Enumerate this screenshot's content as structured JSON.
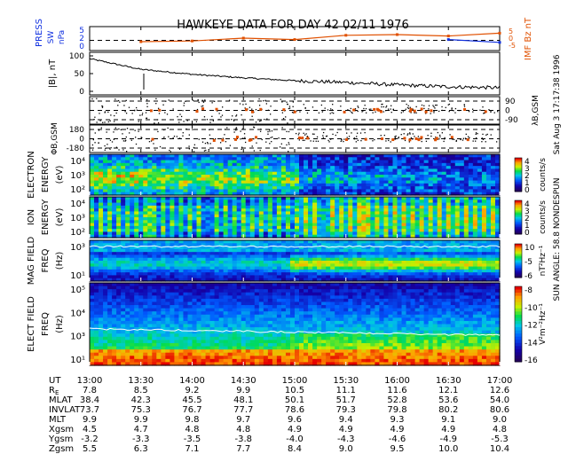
{
  "title": "HAWKEYE DATA FOR DAY  42 02/11 1976",
  "side_annotations": {
    "right_top": "Sat Aug  3 17:17:38 1996",
    "right_mid": "SUN ANGLE: 58.8 NONDESPUN"
  },
  "colors": {
    "press_blue": "#1030e0",
    "imf_orange": "#e05000",
    "line_black": "#000000"
  },
  "chart_data": [
    {
      "type": "line",
      "panel": "pressure-imf",
      "ylabel_left": [
        "PRESS",
        "SW",
        "nPa"
      ],
      "ylabel_right": "IMF Bz nT",
      "left_ticks": [
        "5",
        "2",
        "0"
      ],
      "right_ticks": [
        "5",
        "0",
        "-5"
      ],
      "x": [
        "13:00",
        "13:30",
        "14:00",
        "14:30",
        "15:00",
        "15:30",
        "16:00",
        "16:30",
        "17:00"
      ],
      "series": [
        {
          "color": "#1030e0",
          "values": [
            null,
            null,
            null,
            null,
            null,
            null,
            null,
            1.6,
            0.8
          ]
        },
        {
          "color": "#e05000",
          "values": [
            null,
            1.0,
            1.2,
            2.0,
            1.6,
            2.8,
            3.0,
            2.6,
            3.4
          ]
        }
      ]
    },
    {
      "type": "line",
      "panel": "field-magnitude",
      "ylabel": "|B|, nT",
      "yticks": [
        "100",
        "50",
        "0"
      ],
      "ylim": [
        0,
        100
      ],
      "x": [
        "13:00",
        "13:30",
        "14:00",
        "14:30",
        "15:00",
        "15:30",
        "16:00",
        "16:30",
        "17:00"
      ],
      "values": [
        92,
        62,
        48,
        38,
        30,
        25,
        18,
        13,
        10
      ]
    },
    {
      "type": "scatter",
      "panel": "lambda",
      "ylabel_right": "λB,GSM",
      "yticks": [
        "90",
        "0",
        "-90"
      ],
      "ylim": [
        -90,
        90
      ]
    },
    {
      "type": "scatter",
      "panel": "phi",
      "ylabel": "ΦB,GSM",
      "yticks": [
        "180",
        "0",
        "-180"
      ],
      "ylim": [
        -180,
        180
      ]
    },
    {
      "type": "heatmap",
      "panel": "electron",
      "ylabel": [
        "ELECTRON",
        "ENERGY",
        "(eV)"
      ],
      "yticks": [
        "10⁴",
        "10³",
        "10²"
      ],
      "colorbar_ticks": [
        "4",
        "3",
        "2",
        "1",
        "0"
      ],
      "colorbar_label": "counts/s"
    },
    {
      "type": "heatmap",
      "panel": "ion",
      "ylabel": [
        "ION",
        "ENERGY",
        "(eV)"
      ],
      "yticks": [
        "10⁴",
        "10³",
        "10²"
      ],
      "colorbar_ticks": [
        "4",
        "3",
        "2",
        "1",
        "0"
      ],
      "colorbar_label": "counts/s"
    },
    {
      "type": "heatmap",
      "panel": "mag-field",
      "ylabel": [
        "MAG FIELD",
        "FREQ",
        "(Hz)"
      ],
      "yticks": [
        "10³",
        "10¹"
      ],
      "colorbar_ticks": [
        "10",
        "-5",
        "-6"
      ],
      "colorbar_label": "nT²Hz⁻¹"
    },
    {
      "type": "heatmap",
      "panel": "elect-field",
      "ylabel": [
        "ELECT FIELD",
        "FREQ",
        "(Hz)"
      ],
      "yticks": [
        "10⁵",
        "10⁴",
        "10³",
        "10¹"
      ],
      "colorbar_ticks": [
        "-8",
        "-10",
        "-12",
        "-14",
        "-16"
      ],
      "colorbar_label": "V²m⁻²Hz⁻¹"
    }
  ],
  "ephemeris": {
    "columns": [
      "13:00",
      "13:30",
      "14:00",
      "14:30",
      "15:00",
      "15:30",
      "16:00",
      "16:30",
      "17:00"
    ],
    "rows": [
      {
        "label": "UT",
        "values": [
          "13:00",
          "13:30",
          "14:00",
          "14:30",
          "15:00",
          "15:30",
          "16:00",
          "16:30",
          "17:00"
        ]
      },
      {
        "label": "RE",
        "values": [
          "7.8",
          "8.5",
          "9.2",
          "9.9",
          "10.5",
          "11.1",
          "11.6",
          "12.1",
          "12.6"
        ]
      },
      {
        "label": "MLAT",
        "values": [
          "38.4",
          "42.3",
          "45.5",
          "48.1",
          "50.1",
          "51.7",
          "52.8",
          "53.6",
          "54.0"
        ]
      },
      {
        "label": "INVLAT",
        "values": [
          "73.7",
          "75.3",
          "76.7",
          "77.7",
          "78.6",
          "79.3",
          "79.8",
          "80.2",
          "80.6"
        ]
      },
      {
        "label": "MLT",
        "values": [
          "9.9",
          "9.9",
          "9.8",
          "9.7",
          "9.6",
          "9.4",
          "9.3",
          "9.1",
          "9.0"
        ]
      },
      {
        "label": "Xgsm",
        "values": [
          "4.5",
          "4.7",
          "4.8",
          "4.8",
          "4.9",
          "4.9",
          "4.9",
          "4.9",
          "4.8"
        ]
      },
      {
        "label": "Ygsm",
        "values": [
          "-3.2",
          "-3.3",
          "-3.5",
          "-3.8",
          "-4.0",
          "-4.3",
          "-4.6",
          "-4.9",
          "-5.3"
        ]
      },
      {
        "label": "Zgsm",
        "values": [
          "5.5",
          "6.3",
          "7.1",
          "7.7",
          "8.4",
          "9.0",
          "9.5",
          "10.0",
          "10.4"
        ]
      }
    ]
  }
}
